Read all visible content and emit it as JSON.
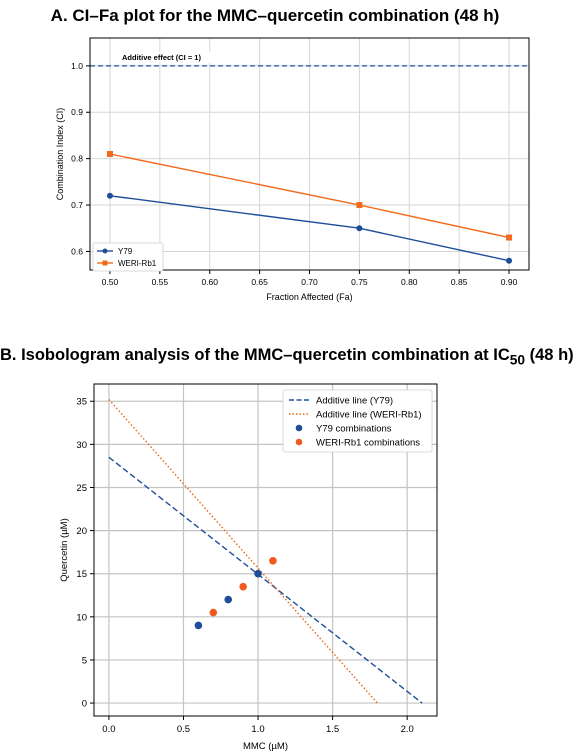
{
  "chart_data": [
    {
      "type": "line",
      "title": "A. CI–Fa plot for the MMC–quercetin combination (48 h)",
      "xlabel": "Fraction Affected (Fa)",
      "ylabel": "Combination Index (CI)",
      "xlim": [
        0.48,
        0.92
      ],
      "ylim": [
        0.56,
        1.06
      ],
      "xticks": [
        "0.50",
        "0.55",
        "0.60",
        "0.65",
        "0.70",
        "0.75",
        "0.80",
        "0.85",
        "0.90"
      ],
      "yticks": [
        "0.6",
        "0.7",
        "0.8",
        "0.9",
        "1.0"
      ],
      "grid": true,
      "legend": "lower-left",
      "reference_line": {
        "y": 1.0,
        "label": "Additive effect (CI = 1)",
        "color": "#1f4e99"
      },
      "series": [
        {
          "name": "Y79",
          "color": "#1f4e99",
          "marker": "circle",
          "x": [
            0.5,
            0.75,
            0.9
          ],
          "y": [
            0.72,
            0.65,
            0.58
          ]
        },
        {
          "name": "WERI-Rb1",
          "color": "#f26b1d",
          "marker": "square",
          "x": [
            0.5,
            0.75,
            0.9
          ],
          "y": [
            0.81,
            0.7,
            0.63
          ]
        }
      ]
    },
    {
      "type": "scatter",
      "title_prefix": "B. Isobologram analysis of the MMC–quercetin combination at IC",
      "title_sub": "50",
      "title_suffix": " (48 h)",
      "xlabel": "MMC (µM)",
      "ylabel": "Quercetin (µM)",
      "xlim": [
        -0.1,
        2.2
      ],
      "ylim": [
        -1.5,
        37
      ],
      "xticks": [
        "0.0",
        "0.5",
        "1.0",
        "1.5",
        "2.0"
      ],
      "yticks": [
        "0",
        "5",
        "10",
        "15",
        "20",
        "25",
        "30",
        "35"
      ],
      "grid": true,
      "legend": "top-right",
      "lines": [
        {
          "name": "Additive line (Y79)",
          "color": "#1f4e99",
          "style": "dashed",
          "x": [
            0,
            2.1
          ],
          "y": [
            28.5,
            0
          ]
        },
        {
          "name": "Additive line (WERI-Rb1)",
          "color": "#e8661c",
          "style": "dotted",
          "x": [
            0,
            1.8
          ],
          "y": [
            35.2,
            0
          ]
        }
      ],
      "points": [
        {
          "name": "Y79 combinations",
          "color": "#1f4e99",
          "x": [
            0.6,
            0.8,
            1.0
          ],
          "y": [
            9.0,
            12.0,
            15.0
          ]
        },
        {
          "name": "WERI-Rb1 combinations",
          "color": "#f05a1e",
          "x": [
            0.7,
            0.9,
            1.1
          ],
          "y": [
            10.5,
            13.5,
            16.5
          ]
        }
      ]
    }
  ]
}
